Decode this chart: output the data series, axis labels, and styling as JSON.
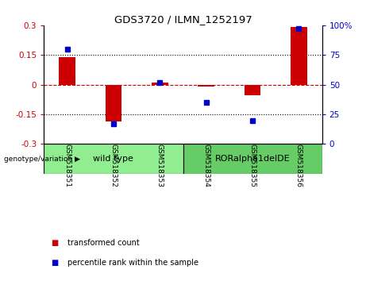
{
  "title": "GDS3720 / ILMN_1252197",
  "categories": [
    "GSM518351",
    "GSM518352",
    "GSM518353",
    "GSM518354",
    "GSM518355",
    "GSM518356"
  ],
  "red_bars": [
    0.14,
    -0.185,
    0.01,
    -0.01,
    -0.055,
    0.29
  ],
  "blue_dots": [
    80,
    17,
    52,
    35,
    20,
    97
  ],
  "ylim_left": [
    -0.3,
    0.3
  ],
  "ylim_right": [
    0,
    100
  ],
  "yticks_left": [
    -0.3,
    -0.15,
    0,
    0.15,
    0.3
  ],
  "yticks_right": [
    0,
    25,
    50,
    75,
    100
  ],
  "red_color": "#cc0000",
  "blue_color": "#0000cc",
  "hline_color": "#cc0000",
  "dotted_color": "#000000",
  "group1_label": "wild type",
  "group2_label": "RORalpha1delDE",
  "group1_indices": [
    0,
    1,
    2
  ],
  "group2_indices": [
    3,
    4,
    5
  ],
  "group1_color": "#90ee90",
  "group2_color": "#66cc66",
  "genotype_label": "genotype/variation",
  "legend_red": "transformed count",
  "legend_blue": "percentile rank within the sample",
  "plot_bg": "#ffffff",
  "label_bg": "#d3d3d3",
  "bar_width": 0.35
}
